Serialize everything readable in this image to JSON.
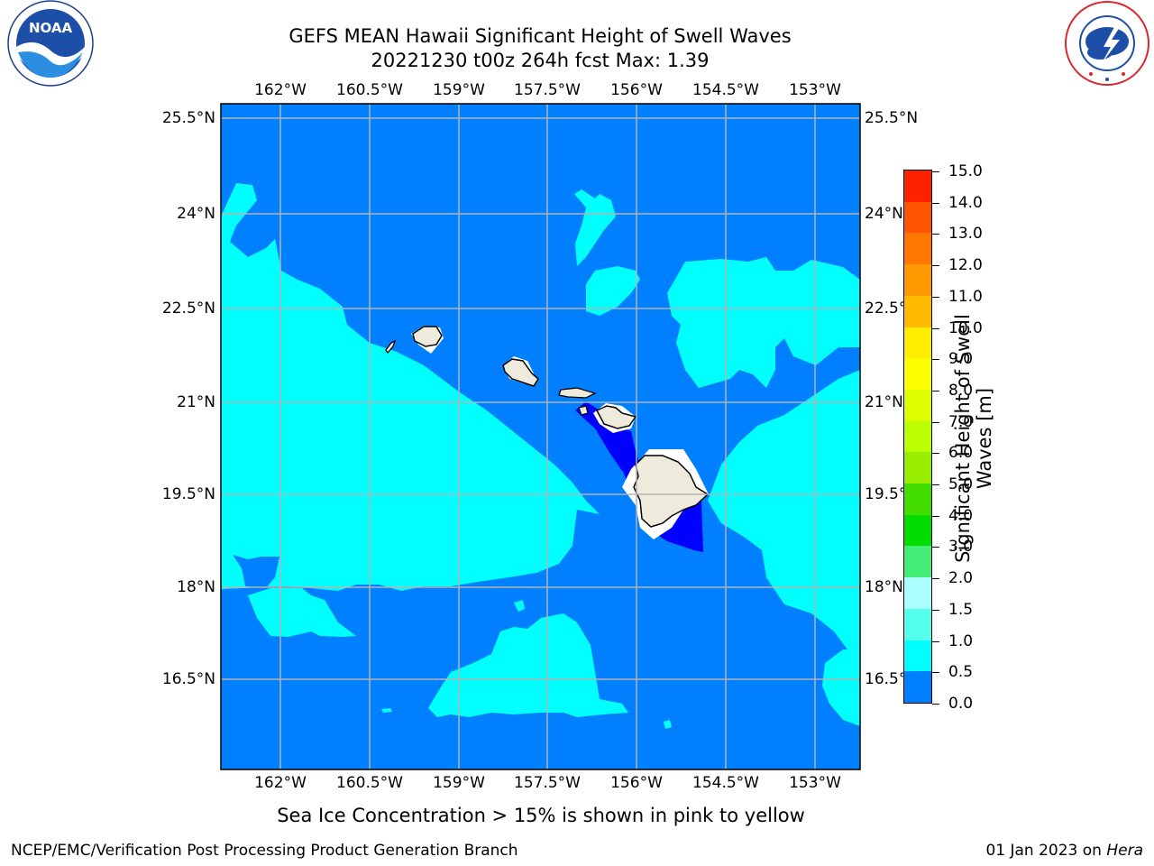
{
  "header": {
    "title_line1": "GEFS MEAN Hawaii Significant Height of Swell Waves",
    "title_line2": "20221230 t00z 264h fcst   Max: 1.39"
  },
  "logos": {
    "left": {
      "name": "noaa-logo",
      "text": "NOAA"
    },
    "right": {
      "name": "nws-logo",
      "text": "NATIONAL WEATHER SERVICE"
    }
  },
  "map": {
    "longitude_ticks": [
      "162°W",
      "160.5°W",
      "159°W",
      "157.5°W",
      "156°W",
      "154.5°W",
      "153°W"
    ],
    "latitude_ticks": [
      "25.5°N",
      "24°N",
      "22.5°N",
      "21°N",
      "19.5°N",
      "18°N",
      "16.5°N"
    ],
    "colors": {
      "level_0_0.5": "#0000ff",
      "level_0.5_1.0": "#0080ff",
      "level_1.0_1.5": "#00ffff",
      "land": "#efebdc",
      "gridline": "#b3b3b3"
    }
  },
  "colorbar": {
    "title": "Significant Height of Swell Waves [m]",
    "labels": [
      "15.0",
      "14.0",
      "13.0",
      "12.0",
      "11.0",
      "10.0",
      "9.0",
      "8.0",
      "7.0",
      "6.0",
      "5.0",
      "4.0",
      "3.0",
      "2.0",
      "1.5",
      "1.0",
      "0.5",
      "0.0"
    ],
    "colors": [
      "#ff0000",
      "#ff2200",
      "#ff5500",
      "#ff7700",
      "#ff9900",
      "#ffbb00",
      "#ffee00",
      "#ffff00",
      "#ddff00",
      "#bbff00",
      "#99ee00",
      "#44dd00",
      "#00dd00",
      "#44ee77",
      "#aaffff",
      "#55ffee",
      "#00ffff",
      "#0080ff",
      "#0000ff"
    ]
  },
  "caption": "Sea Ice Concentration > 15% is shown in pink to yellow",
  "footer": {
    "left": "NCEP/EMC/Verification Post Processing Product Generation Branch",
    "right_date": "01 Jan 2023 on ",
    "right_host": "Hera"
  }
}
